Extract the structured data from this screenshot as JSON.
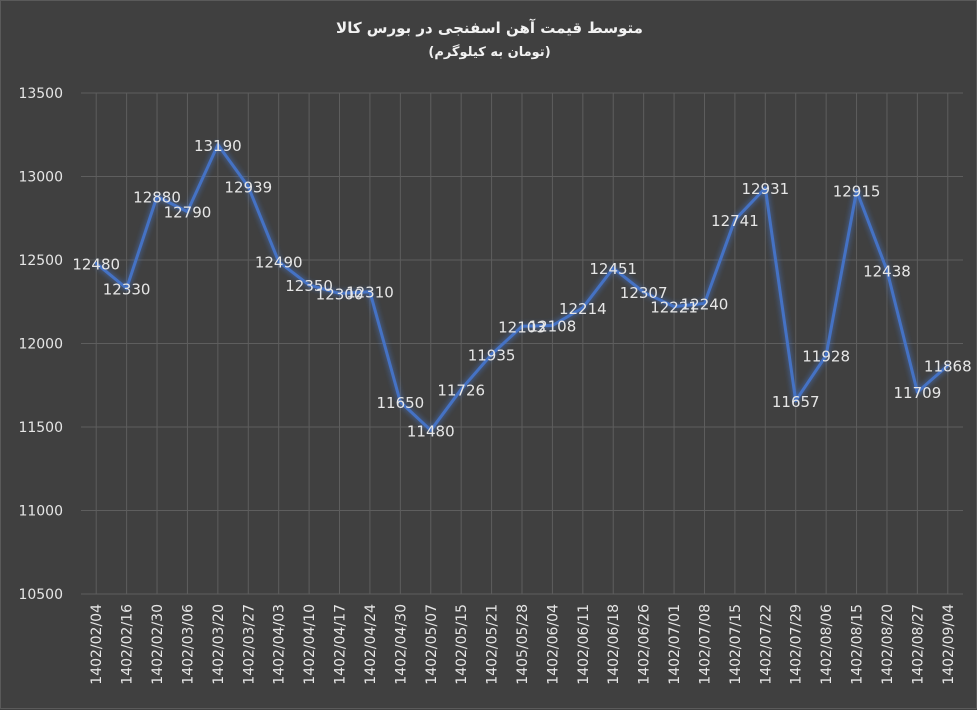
{
  "chart_data": {
    "type": "line",
    "title": "متوسط قیمت آهن اسفنجی در بورس کالا",
    "subtitle": "(تومان به کیلوگرم)",
    "xlabel": "",
    "ylabel": "",
    "ylim": [
      10500,
      13500
    ],
    "yticks": [
      10500,
      11000,
      11500,
      12000,
      12500,
      13000,
      13500
    ],
    "grid": true,
    "legend": "none",
    "line_color": "#4472c4",
    "categories": [
      "1402/02/04",
      "1402/02/16",
      "1402/02/30",
      "1402/03/06",
      "1402/03/20",
      "1402/03/27",
      "1402/04/03",
      "1402/04/10",
      "1402/04/17",
      "1402/04/24",
      "1402/04/30",
      "1402/05/07",
      "1402/05/15",
      "1402/05/21",
      "1405/05/28",
      "1402/06/04",
      "1402/06/11",
      "1402/06/18",
      "1402/06/26",
      "1402/07/01",
      "1402/07/08",
      "1402/07/15",
      "1402/07/22",
      "1402/07/29",
      "1402/08/06",
      "1402/08/15",
      "1402/08/20",
      "1402/08/27",
      "1402/09/04"
    ],
    "series": [
      {
        "values": [
          12480,
          12330,
          12880,
          12790,
          13190,
          12939,
          12490,
          12350,
          12300,
          12310,
          11650,
          11480,
          11726,
          11935,
          12103,
          12108,
          12214,
          12451,
          12307,
          12221,
          12240,
          12741,
          12931,
          11657,
          11928,
          12915,
          12438,
          11709,
          11868
        ]
      }
    ]
  }
}
